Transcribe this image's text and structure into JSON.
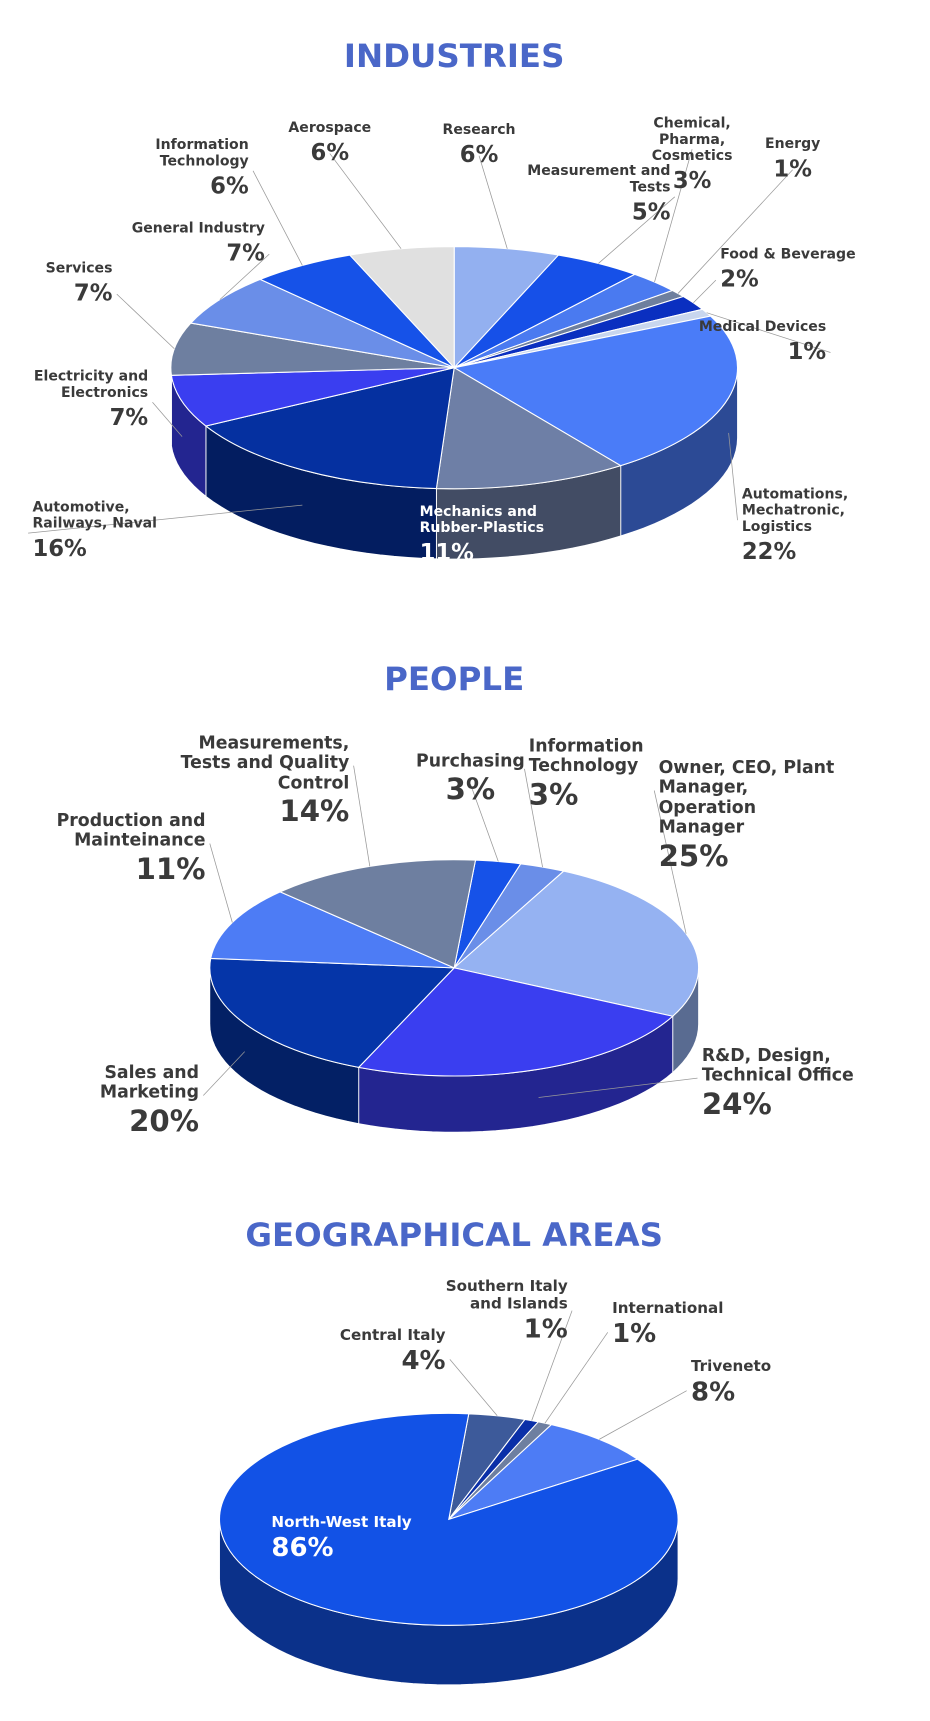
{
  "chart_data": [
    {
      "type": "pie",
      "title": "INDUSTRIES",
      "labels": [
        "Research",
        "Measurement and Tests",
        "Chemical, Pharma, Cosmetics",
        "Energy",
        "Food & Beverage",
        "Medical Devices",
        "Automations, Mechatronic, Logistics",
        "Mechanics and Rubber-Plastics",
        "Automotive, Railways, Naval",
        "Electricity and Electronics",
        "Services",
        "General Industry",
        "Information Technology",
        "Aerospace"
      ],
      "values": [
        6,
        5,
        3,
        1,
        2,
        1,
        22,
        11,
        16,
        7,
        7,
        7,
        6,
        6
      ],
      "value_labels": [
        "6%",
        "5%",
        "3%",
        "1%",
        "2%",
        "1%",
        "22%",
        "11%",
        "16%",
        "7%",
        "7%",
        "7%",
        "6%",
        "6%"
      ],
      "colors": [
        "#93b0f0",
        "#1650e8",
        "#4a7af0",
        "#6e7f9e",
        "#0a2fc0",
        "#c8d6ee",
        "#4a7cf8",
        "#6e7fa6",
        "#0530a0",
        "#3a3ef0",
        "#6e7fa0",
        "#6a8ee8",
        "#1652e8",
        "#e0e0e0"
      ]
    },
    {
      "type": "pie",
      "title": "PEOPLE",
      "labels": [
        "Purchasing",
        "Information Technology",
        "Owner, CEO, Plant Manager, Operation Manager",
        "R&D, Design, Technical Office",
        "Sales and Marketing",
        "Production and Mainteinance",
        "Measurements, Tests and Quality Control"
      ],
      "values": [
        3,
        3,
        25,
        24,
        20,
        11,
        14
      ],
      "value_labels": [
        "3%",
        "3%",
        "25%",
        "24%",
        "20%",
        "11%",
        "14%"
      ],
      "colors": [
        "#1652e8",
        "#6a8ee8",
        "#95b2f2",
        "#3a3ef0",
        "#0535a8",
        "#4d7cf5",
        "#6e7fa0"
      ]
    },
    {
      "type": "pie",
      "title": "GEOGRAPHICAL AREAS",
      "labels": [
        "Central Italy",
        "Southern Italy and Islands",
        "International",
        "Triveneto",
        "North-West Italy"
      ],
      "values": [
        4,
        1,
        1,
        8,
        86
      ],
      "value_labels": [
        "4%",
        "1%",
        "1%",
        "8%",
        "86%"
      ],
      "colors": [
        "#3d5a9a",
        "#0a2fa8",
        "#6e7fa0",
        "#4d7cf5",
        "#1252e6"
      ]
    }
  ]
}
